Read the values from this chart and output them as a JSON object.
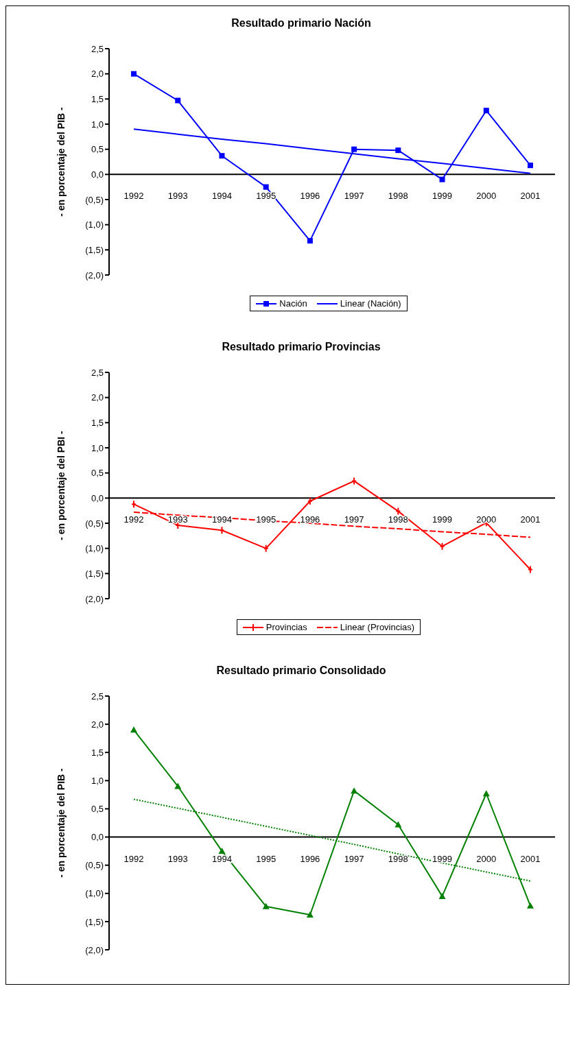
{
  "chart_data": [
    {
      "type": "line",
      "title": "Resultado primario Nación",
      "ylabel": "- en porcentaje del PIB  -",
      "categories": [
        "1992",
        "1993",
        "1994",
        "1995",
        "1996",
        "1997",
        "1998",
        "1999",
        "2000",
        "2001"
      ],
      "series": [
        {
          "name": "Nación",
          "color": "#0000ff",
          "marker": "square",
          "line_style": "solid",
          "values": [
            2.0,
            1.47,
            0.37,
            -0.25,
            -1.32,
            0.5,
            0.48,
            -0.1,
            1.27,
            0.18
          ]
        },
        {
          "name": "Linear (Nación)",
          "color": "#0000ff",
          "marker": "none",
          "line_style": "solid",
          "values": [
            0.9,
            0.8,
            0.7,
            0.61,
            0.51,
            0.41,
            0.31,
            0.22,
            0.12,
            0.02
          ]
        }
      ],
      "ylim": [
        -2,
        2.5
      ],
      "yticks": [
        {
          "value": 2.5,
          "label": "2,5"
        },
        {
          "value": 2,
          "label": "2,0"
        },
        {
          "value": 1.5,
          "label": "1,5"
        },
        {
          "value": 1,
          "label": "1,0"
        },
        {
          "value": 0.5,
          "label": "0,5"
        },
        {
          "value": 0,
          "label": "0,0"
        },
        {
          "value": -0.5,
          "label": "(0,5)"
        },
        {
          "value": -1,
          "label": "(1,0)"
        },
        {
          "value": -1.5,
          "label": "(1,5)"
        },
        {
          "value": -2,
          "label": "(2,0)"
        }
      ],
      "grid": false,
      "legend": "bottom"
    },
    {
      "type": "line",
      "title": "Resultado primario Provincias",
      "ylabel": "- en porcentaje del PBI  -",
      "categories": [
        "1992",
        "1993",
        "1994",
        "1995",
        "1996",
        "1997",
        "1998",
        "1999",
        "2000",
        "2001"
      ],
      "series": [
        {
          "name": "Provincias",
          "color": "#ff0000",
          "marker": "cross",
          "line_style": "solid",
          "values": [
            -0.12,
            -0.54,
            -0.64,
            -1.0,
            -0.06,
            0.34,
            -0.26,
            -0.96,
            -0.49,
            -1.42
          ]
        },
        {
          "name": "Linear (Provincias)",
          "color": "#ff0000",
          "marker": "none",
          "line_style": "dashed",
          "values": [
            -0.28,
            -0.34,
            -0.39,
            -0.45,
            -0.5,
            -0.56,
            -0.61,
            -0.67,
            -0.72,
            -0.78
          ]
        }
      ],
      "ylim": [
        -2,
        2.5
      ],
      "yticks": [
        {
          "value": 2.5,
          "label": "2,5"
        },
        {
          "value": 2,
          "label": "2,0"
        },
        {
          "value": 1.5,
          "label": "1,5"
        },
        {
          "value": 1,
          "label": "1,0"
        },
        {
          "value": 0.5,
          "label": "0,5"
        },
        {
          "value": 0,
          "label": "0,0"
        },
        {
          "value": -0.5,
          "label": "(0,5)"
        },
        {
          "value": -1,
          "label": "(1,0)"
        },
        {
          "value": -1.5,
          "label": "(1,5)"
        },
        {
          "value": -2,
          "label": "(2,0)"
        }
      ],
      "grid": false,
      "legend": "bottom"
    },
    {
      "type": "line",
      "title": "Resultado primario Consolidado",
      "ylabel": "- en porcentaje del PIB  -",
      "categories": [
        "1992",
        "1993",
        "1994",
        "1995",
        "1996",
        "1997",
        "1998",
        "1999",
        "2000",
        "2001"
      ],
      "series": [
        {
          "color": "#008000",
          "marker": "triangle",
          "line_style": "solid",
          "values": [
            1.9,
            0.9,
            -0.25,
            -1.23,
            -1.38,
            0.82,
            0.22,
            -1.05,
            0.77,
            -1.22
          ]
        },
        {
          "color": "#008000",
          "marker": "none",
          "line_style": "dotted",
          "values": [
            0.67,
            0.51,
            0.35,
            0.19,
            0.03,
            -0.13,
            -0.3,
            -0.46,
            -0.62,
            -0.78
          ]
        }
      ],
      "ylim": [
        -2,
        2.5
      ],
      "yticks": [
        {
          "value": 2.5,
          "label": "2,5"
        },
        {
          "value": 2,
          "label": "2,0"
        },
        {
          "value": 1.5,
          "label": "1,5"
        },
        {
          "value": 1,
          "label": "1,0"
        },
        {
          "value": 0.5,
          "label": "0,5"
        },
        {
          "value": 0,
          "label": "0,0"
        },
        {
          "value": -0.5,
          "label": "(0,5)"
        },
        {
          "value": -1,
          "label": "(1,0)"
        },
        {
          "value": -1.5,
          "label": "(1,5)"
        },
        {
          "value": -2,
          "label": "(2,0)"
        }
      ],
      "grid": false,
      "legend": false
    }
  ]
}
